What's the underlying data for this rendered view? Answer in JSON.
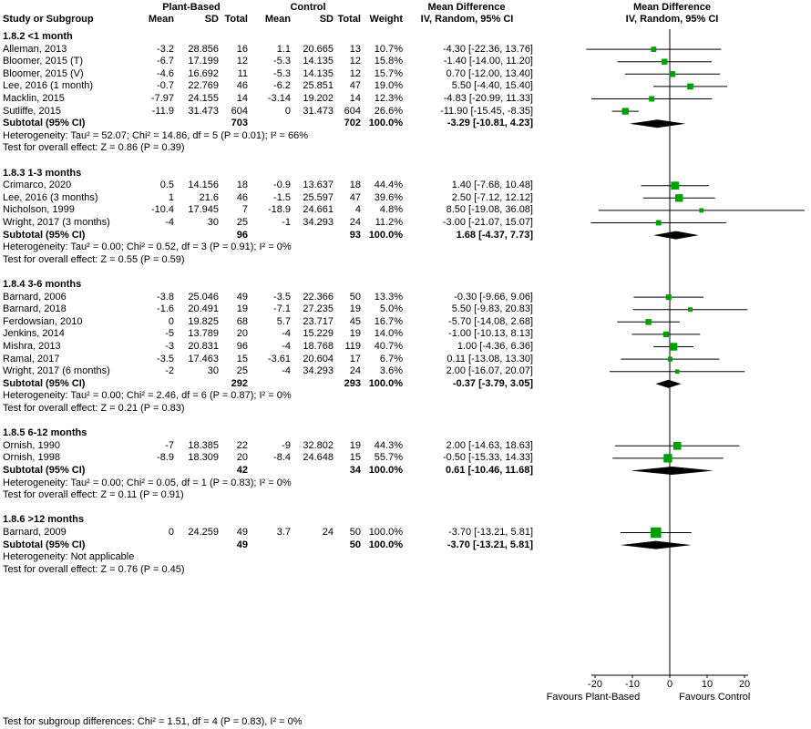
{
  "header": {
    "group_plant": "Plant-Based",
    "group_control": "Control",
    "md_text_col": "Mean Difference",
    "md_plot_col": "Mean Difference",
    "col_study": "Study or Subgroup",
    "col_mean": "Mean",
    "col_sd": "SD",
    "col_total": "Total",
    "col_weight": "Weight",
    "col_ci": "IV, Random, 95% CI"
  },
  "footer": {
    "subgroup_test": "Test for subgroup differences: Chi² = 1.51, df = 4 (P = 0.83), I² = 0%"
  },
  "chart_data": {
    "type": "forest",
    "effect_measure": "Mean Difference",
    "model": "IV, Random, 95% CI",
    "marker_color": "#00A000",
    "diamond_color": "#000000",
    "axis": {
      "ticks": [
        -20,
        -10,
        0,
        10,
        20
      ],
      "tick_range": [
        -20,
        20
      ],
      "left_label": "Favours Plant-Based",
      "right_label": "Favours Control"
    },
    "subgroups": [
      {
        "label": "1.8.2 <1 month",
        "studies": [
          {
            "study": "Alleman, 2013",
            "pb_mean": "-3.2",
            "pb_sd": "28.856",
            "pb_total": "16",
            "c_mean": "1.1",
            "c_sd": "20.665",
            "c_total": "13",
            "weight": "10.7%",
            "ci_text": "-4.30 [-22.36, 13.76]",
            "est": -4.3,
            "lo": -22.36,
            "hi": 13.76,
            "weight_pct": 10.7
          },
          {
            "study": "Bloomer, 2015 (T)",
            "pb_mean": "-6.7",
            "pb_sd": "17.199",
            "pb_total": "12",
            "c_mean": "-5.3",
            "c_sd": "14.135",
            "c_total": "12",
            "weight": "15.8%",
            "ci_text": "-1.40 [-14.00, 11.20]",
            "est": -1.4,
            "lo": -14.0,
            "hi": 11.2,
            "weight_pct": 15.8
          },
          {
            "study": "Bloomer, 2015 (V)",
            "pb_mean": "-4.6",
            "pb_sd": "16.692",
            "pb_total": "11",
            "c_mean": "-5.3",
            "c_sd": "14.135",
            "c_total": "12",
            "weight": "15.7%",
            "ci_text": "0.70 [-12.00, 13.40]",
            "est": 0.7,
            "lo": -12.0,
            "hi": 13.4,
            "weight_pct": 15.7
          },
          {
            "study": "Lee, 2016 (1 month)",
            "pb_mean": "-0.7",
            "pb_sd": "22.769",
            "pb_total": "46",
            "c_mean": "-6.2",
            "c_sd": "25.851",
            "c_total": "47",
            "weight": "19.0%",
            "ci_text": "5.50 [-4.40, 15.40]",
            "est": 5.5,
            "lo": -4.4,
            "hi": 15.4,
            "weight_pct": 19.0
          },
          {
            "study": "Macklin, 2015",
            "pb_mean": "-7.97",
            "pb_sd": "24.155",
            "pb_total": "14",
            "c_mean": "-3.14",
            "c_sd": "19.202",
            "c_total": "14",
            "weight": "12.3%",
            "ci_text": "-4.83 [-20.99, 11.33]",
            "est": -4.83,
            "lo": -20.99,
            "hi": 11.33,
            "weight_pct": 12.3
          },
          {
            "study": "Sutliffe, 2015",
            "pb_mean": "-11.9",
            "pb_sd": "31.473",
            "pb_total": "604",
            "c_mean": "0",
            "c_sd": "31.473",
            "c_total": "604",
            "weight": "26.6%",
            "ci_text": "-11.90 [-15.45, -8.35]",
            "est": -11.9,
            "lo": -15.45,
            "hi": -8.35,
            "weight_pct": 26.6
          }
        ],
        "subtotal": {
          "label": "Subtotal (95% CI)",
          "pb_total": "703",
          "c_total": "702",
          "weight": "100.0%",
          "ci_text": "-3.29 [-10.81, 4.23]",
          "est": -3.29,
          "lo": -10.81,
          "hi": 4.23
        },
        "heterogeneity": "Heterogeneity: Tau² = 52.07; Chi² = 14.86, df = 5 (P = 0.01); I² = 66%",
        "overall": "Test for overall effect: Z = 0.86 (P = 0.39)"
      },
      {
        "label": "1.8.3 1-3 months",
        "studies": [
          {
            "study": "Crimarco, 2020",
            "pb_mean": "0.5",
            "pb_sd": "14.156",
            "pb_total": "18",
            "c_mean": "-0.9",
            "c_sd": "13.637",
            "c_total": "18",
            "weight": "44.4%",
            "ci_text": "1.40 [-7.68, 10.48]",
            "est": 1.4,
            "lo": -7.68,
            "hi": 10.48,
            "weight_pct": 44.4
          },
          {
            "study": "Lee, 2016 (3 months)",
            "pb_mean": "1",
            "pb_sd": "21.6",
            "pb_total": "46",
            "c_mean": "-1.5",
            "c_sd": "25.597",
            "c_total": "47",
            "weight": "39.6%",
            "ci_text": "2.50 [-7.12, 12.12]",
            "est": 2.5,
            "lo": -7.12,
            "hi": 12.12,
            "weight_pct": 39.6
          },
          {
            "study": "Nicholson, 1999",
            "pb_mean": "-10.4",
            "pb_sd": "17.945",
            "pb_total": "7",
            "c_mean": "-18.9",
            "c_sd": "24.661",
            "c_total": "4",
            "weight": "4.8%",
            "ci_text": "8.50 [-19.08, 36.08]",
            "est": 8.5,
            "lo": -19.08,
            "hi": 36.08,
            "weight_pct": 4.8
          },
          {
            "study": "Wright, 2017 (3 months)",
            "pb_mean": "-4",
            "pb_sd": "30",
            "pb_total": "25",
            "c_mean": "-1",
            "c_sd": "34.293",
            "c_total": "24",
            "weight": "11.2%",
            "ci_text": "-3.00 [-21.07, 15.07]",
            "est": -3.0,
            "lo": -21.07,
            "hi": 15.07,
            "weight_pct": 11.2
          }
        ],
        "subtotal": {
          "label": "Subtotal (95% CI)",
          "pb_total": "96",
          "c_total": "93",
          "weight": "100.0%",
          "ci_text": "1.68 [-4.37, 7.73]",
          "est": 1.68,
          "lo": -4.37,
          "hi": 7.73
        },
        "heterogeneity": "Heterogeneity: Tau² = 0.00; Chi² = 0.52, df = 3 (P = 0.91); I² = 0%",
        "overall": "Test for overall effect: Z = 0.55 (P = 0.59)"
      },
      {
        "label": "1.8.4 3-6 months",
        "studies": [
          {
            "study": "Barnard, 2006",
            "pb_mean": "-3.8",
            "pb_sd": "25.046",
            "pb_total": "49",
            "c_mean": "-3.5",
            "c_sd": "22.366",
            "c_total": "50",
            "weight": "13.3%",
            "ci_text": "-0.30 [-9.66, 9.06]",
            "est": -0.3,
            "lo": -9.66,
            "hi": 9.06,
            "weight_pct": 13.3
          },
          {
            "study": "Barnard, 2018",
            "pb_mean": "-1.6",
            "pb_sd": "20.491",
            "pb_total": "19",
            "c_mean": "-7.1",
            "c_sd": "27.235",
            "c_total": "19",
            "weight": "5.0%",
            "ci_text": "5.50 [-9.83, 20.83]",
            "est": 5.5,
            "lo": -9.83,
            "hi": 20.83,
            "weight_pct": 5.0
          },
          {
            "study": "Ferdowsian, 2010",
            "pb_mean": "0",
            "pb_sd": "19.825",
            "pb_total": "68",
            "c_mean": "5.7",
            "c_sd": "23.717",
            "c_total": "45",
            "weight": "16.7%",
            "ci_text": "-5.70 [-14.08, 2.68]",
            "est": -5.7,
            "lo": -14.08,
            "hi": 2.68,
            "weight_pct": 16.7
          },
          {
            "study": "Jenkins, 2014",
            "pb_mean": "-5",
            "pb_sd": "13.789",
            "pb_total": "20",
            "c_mean": "-4",
            "c_sd": "15.229",
            "c_total": "19",
            "weight": "14.0%",
            "ci_text": "-1.00 [-10.13, 8.13]",
            "est": -1.0,
            "lo": -10.13,
            "hi": 8.13,
            "weight_pct": 14.0
          },
          {
            "study": "Mishra, 2013",
            "pb_mean": "-3",
            "pb_sd": "20.831",
            "pb_total": "96",
            "c_mean": "-4",
            "c_sd": "18.768",
            "c_total": "119",
            "weight": "40.7%",
            "ci_text": "1.00 [-4.36, 6.36]",
            "est": 1.0,
            "lo": -4.36,
            "hi": 6.36,
            "weight_pct": 40.7
          },
          {
            "study": "Ramal, 2017",
            "pb_mean": "-3.5",
            "pb_sd": "17.463",
            "pb_total": "15",
            "c_mean": "-3.61",
            "c_sd": "20.604",
            "c_total": "17",
            "weight": "6.7%",
            "ci_text": "0.11 [-13.08, 13.30]",
            "est": 0.11,
            "lo": -13.08,
            "hi": 13.3,
            "weight_pct": 6.7
          },
          {
            "study": "Wright, 2017 (6 months)",
            "pb_mean": "-2",
            "pb_sd": "30",
            "pb_total": "25",
            "c_mean": "-4",
            "c_sd": "34.293",
            "c_total": "24",
            "weight": "3.6%",
            "ci_text": "2.00 [-16.07, 20.07]",
            "est": 2.0,
            "lo": -16.07,
            "hi": 20.07,
            "weight_pct": 3.6
          }
        ],
        "subtotal": {
          "label": "Subtotal (95% CI)",
          "pb_total": "292",
          "c_total": "293",
          "weight": "100.0%",
          "ci_text": "-0.37 [-3.79, 3.05]",
          "est": -0.37,
          "lo": -3.79,
          "hi": 3.05
        },
        "heterogeneity": "Heterogeneity: Tau² = 0.00; Chi² = 2.46, df = 6 (P = 0.87); I² = 0%",
        "overall": "Test for overall effect: Z = 0.21 (P = 0.83)"
      },
      {
        "label": "1.8.5 6-12 months",
        "studies": [
          {
            "study": "Ornish, 1990",
            "pb_mean": "-7",
            "pb_sd": "18.385",
            "pb_total": "22",
            "c_mean": "-9",
            "c_sd": "32.802",
            "c_total": "19",
            "weight": "44.3%",
            "ci_text": "2.00 [-14.63, 18.63]",
            "est": 2.0,
            "lo": -14.63,
            "hi": 18.63,
            "weight_pct": 44.3
          },
          {
            "study": "Ornish, 1998",
            "pb_mean": "-8.9",
            "pb_sd": "18.309",
            "pb_total": "20",
            "c_mean": "-8.4",
            "c_sd": "24.648",
            "c_total": "15",
            "weight": "55.7%",
            "ci_text": "-0.50 [-15.33, 14.33]",
            "est": -0.5,
            "lo": -15.33,
            "hi": 14.33,
            "weight_pct": 55.7
          }
        ],
        "subtotal": {
          "label": "Subtotal (95% CI)",
          "pb_total": "42",
          "c_total": "34",
          "weight": "100.0%",
          "ci_text": "0.61 [-10.46, 11.68]",
          "est": 0.61,
          "lo": -10.46,
          "hi": 11.68
        },
        "heterogeneity": "Heterogeneity: Tau² = 0.00; Chi² = 0.05, df = 1 (P = 0.83); I² = 0%",
        "overall": "Test for overall effect: Z = 0.11 (P = 0.91)"
      },
      {
        "label": "1.8.6 >12 months",
        "studies": [
          {
            "study": "Barnard, 2009",
            "pb_mean": "0",
            "pb_sd": "24.259",
            "pb_total": "49",
            "c_mean": "3.7",
            "c_sd": "24",
            "c_total": "50",
            "weight": "100.0%",
            "ci_text": "-3.70 [-13.21, 5.81]",
            "est": -3.7,
            "lo": -13.21,
            "hi": 5.81,
            "weight_pct": 100.0
          }
        ],
        "subtotal": {
          "label": "Subtotal (95% CI)",
          "pb_total": "49",
          "c_total": "50",
          "weight": "100.0%",
          "ci_text": "-3.70 [-13.21, 5.81]",
          "est": -3.7,
          "lo": -13.21,
          "hi": 5.81
        },
        "heterogeneity": "Heterogeneity: Not applicable",
        "overall": "Test for overall effect: Z = 0.76 (P = 0.45)"
      }
    ]
  }
}
